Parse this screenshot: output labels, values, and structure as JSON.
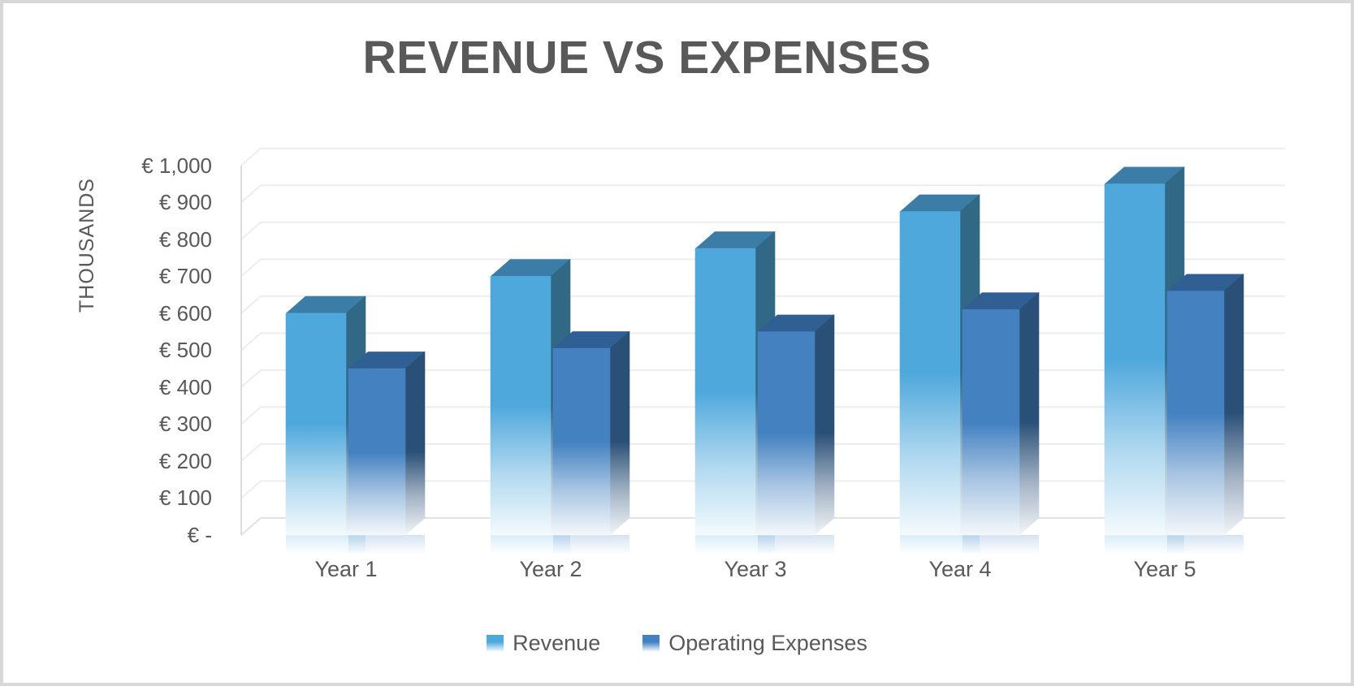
{
  "title": {
    "text": "REVENUE VS EXPENSES",
    "color": "#595959"
  },
  "y_axis": {
    "title": "THOUSANDS",
    "color": "#595959",
    "ticks": [
      {
        "label": "€ 1,000",
        "value": 1000
      },
      {
        "label": "€ 900",
        "value": 900
      },
      {
        "label": "€ 800",
        "value": 800
      },
      {
        "label": "€ 700",
        "value": 700
      },
      {
        "label": "€ 600",
        "value": 600
      },
      {
        "label": "€ 500",
        "value": 500
      },
      {
        "label": "€ 400",
        "value": 400
      },
      {
        "label": "€ 300",
        "value": 300
      },
      {
        "label": "€ 200",
        "value": 200
      },
      {
        "label": "€ 100",
        "value": 100
      },
      {
        "label": "€ -",
        "value": 0
      }
    ]
  },
  "x_axis": {
    "labels": [
      "Year 1",
      "Year 2",
      "Year 3",
      "Year 4",
      "Year 5"
    ],
    "color": "#595959"
  },
  "chart_data": {
    "type": "bar",
    "style": "3d-clustered-column",
    "title": "REVENUE VS EXPENSES",
    "categories": [
      "Year 1",
      "Year 2",
      "Year 3",
      "Year 4",
      "Year 5"
    ],
    "series": [
      {
        "name": "Revenue",
        "values": [
          600,
          700,
          775,
          875,
          950
        ],
        "colors": {
          "front": "#4FA8DC",
          "top": "#3B7DA6",
          "side": "#316886"
        }
      },
      {
        "name": "Operating Expenses",
        "values": [
          450,
          505,
          550,
          610,
          660
        ],
        "colors": {
          "front": "#4381C1",
          "top": "#2F5F93",
          "side": "#2B5077"
        }
      }
    ],
    "ylabel": "THOUSANDS",
    "unit": "EUR thousands",
    "ylim": [
      0,
      1000
    ],
    "ytick_step": 100,
    "grid": true,
    "legend_position": "bottom",
    "gridline_color": "#EDEDED",
    "bars_fade_to_white_at_bottom": true
  }
}
